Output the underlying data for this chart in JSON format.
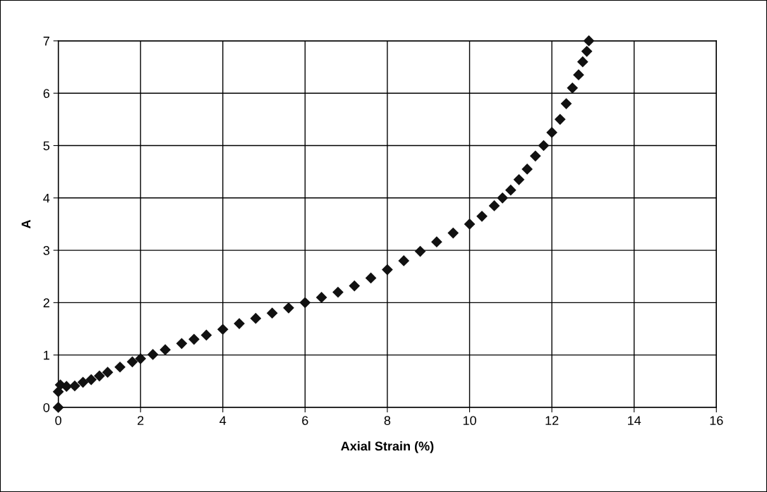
{
  "chart_data": {
    "type": "scatter",
    "xlabel": "Axial Strain (%)",
    "ylabel": "A",
    "xlim": [
      0,
      16
    ],
    "ylim": [
      0,
      7
    ],
    "xticks": [
      0,
      2,
      4,
      6,
      8,
      10,
      12,
      14,
      16
    ],
    "yticks": [
      0,
      1,
      2,
      3,
      4,
      5,
      6,
      7
    ],
    "grid": true,
    "legend": false,
    "marker": "diamond",
    "series": [
      {
        "color": "#111111",
        "x": [
          0,
          0,
          0.05,
          0.2,
          0.4,
          0.6,
          0.8,
          1,
          1.2,
          1.5,
          1.8,
          2,
          2.3,
          2.6,
          3,
          3.3,
          3.6,
          4,
          4.4,
          4.8,
          5.2,
          5.6,
          6,
          6.4,
          6.8,
          7.2,
          7.6,
          8,
          8.4,
          8.8,
          9.2,
          9.6,
          10,
          10.3,
          10.6,
          10.8,
          11,
          11.2,
          11.4,
          11.6,
          11.8,
          12,
          12.2,
          12.35,
          12.5,
          12.65,
          12.75,
          12.85,
          12.9
        ],
        "values": [
          0,
          0.3,
          0.43,
          0.4,
          0.41,
          0.48,
          0.53,
          0.6,
          0.67,
          0.77,
          0.87,
          0.93,
          1.01,
          1.1,
          1.22,
          1.3,
          1.38,
          1.49,
          1.6,
          1.7,
          1.8,
          1.9,
          2.0,
          2.1,
          2.2,
          2.32,
          2.47,
          2.63,
          2.8,
          2.98,
          3.16,
          3.33,
          3.5,
          3.65,
          3.85,
          4.0,
          4.15,
          4.35,
          4.55,
          4.8,
          5.0,
          5.25,
          5.5,
          5.8,
          6.1,
          6.35,
          6.6,
          6.8,
          7.0
        ]
      }
    ]
  }
}
